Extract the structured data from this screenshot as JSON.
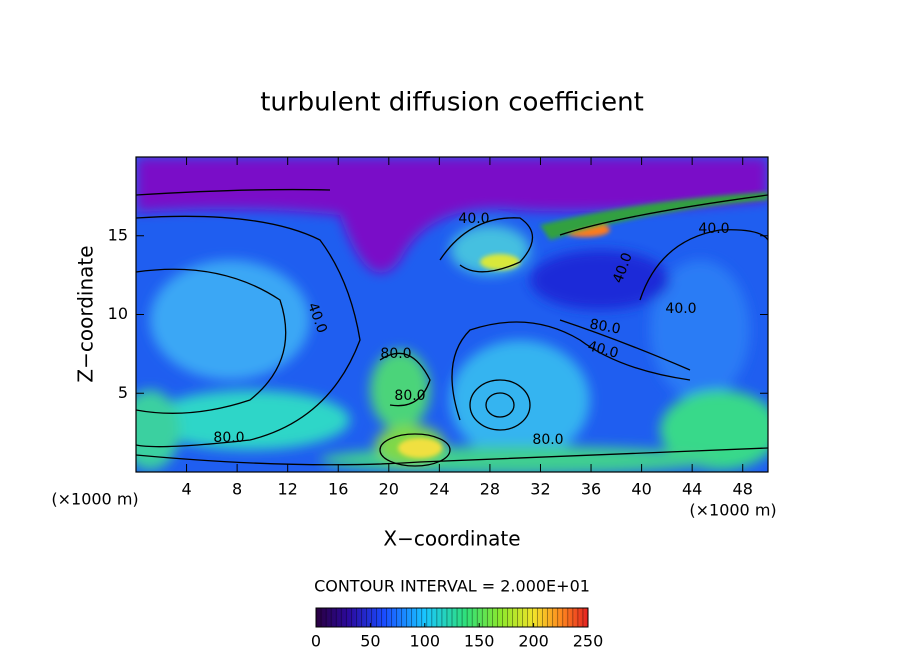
{
  "chart_data": {
    "type": "contour",
    "title": "turbulent diffusion coefficient",
    "x_label": "X−coordinate",
    "y_label": "Z−coordinate",
    "x_unit": "(×1000 m)",
    "y_unit": "(×1000 m)",
    "xlim": [
      0,
      50
    ],
    "ylim": [
      0,
      20
    ],
    "xticks": [
      4,
      8,
      12,
      16,
      20,
      24,
      28,
      32,
      36,
      40,
      44,
      48
    ],
    "yticks": [
      5,
      10,
      15
    ],
    "contour_interval_label": "CONTOUR INTERVAL = 2.000E+01",
    "contour_labels": [
      "40.0",
      "40.0",
      "40.0",
      "40.0",
      "40.0",
      "40.0",
      "80.0",
      "80.0",
      "80.0",
      "80.0",
      "80.0"
    ],
    "colorbar": {
      "lim": [
        0,
        250
      ],
      "ticks": [
        0,
        50,
        100,
        150,
        200,
        250
      ]
    }
  }
}
